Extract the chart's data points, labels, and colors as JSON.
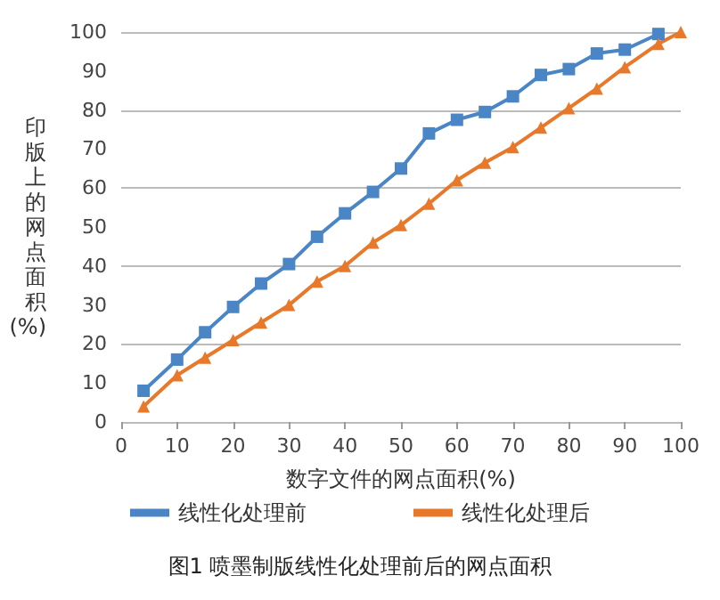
{
  "chart_data": {
    "type": "line",
    "title": "图1 喷墨制版线性化处理前后的网点面积",
    "xlabel": "数字文件的网点面积(%)",
    "ylabel": "印版上的网点面积(%)",
    "series": [
      {
        "name": "线性化处理前",
        "color": "#4a86c5",
        "marker": "square",
        "x": [
          4,
          10,
          15,
          20,
          25,
          30,
          35,
          40,
          45,
          50,
          55,
          60,
          65,
          70,
          75,
          80,
          85,
          90,
          96
        ],
        "values": [
          8,
          16,
          23,
          29.5,
          35.5,
          40.5,
          47.5,
          53.5,
          59,
          65,
          74,
          77.5,
          79.5,
          83.5,
          89,
          90.5,
          94.5,
          95.5,
          99.5
        ]
      },
      {
        "name": "线性化处理后",
        "color": "#e8782a",
        "marker": "triangle",
        "x": [
          4,
          10,
          15,
          20,
          25,
          30,
          35,
          40,
          45,
          50,
          55,
          60,
          65,
          70,
          75,
          80,
          85,
          90,
          96,
          100
        ],
        "values": [
          4,
          12,
          16.5,
          21,
          25.5,
          30,
          36,
          40,
          46,
          50.5,
          56,
          62,
          66.5,
          70.5,
          75.5,
          80.5,
          85.5,
          91,
          97,
          100
        ]
      }
    ],
    "xlim": [
      0,
      100
    ],
    "xticks": [
      0,
      10,
      20,
      30,
      40,
      50,
      60,
      70,
      80,
      90,
      100
    ],
    "ylim": [
      0,
      100
    ],
    "yticks": [
      0,
      10,
      20,
      30,
      40,
      50,
      60,
      70,
      80,
      90,
      100
    ],
    "grid": "y",
    "legend": "bottom",
    "line_style": "solid"
  }
}
